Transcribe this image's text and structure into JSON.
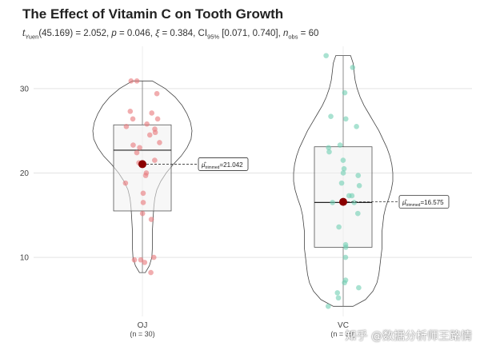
{
  "title": "The Effect of Vitamin C on Tooth Growth",
  "subtitle": {
    "test": "t",
    "test_sub": "Yuen",
    "df_stat": "(45.169) = 2.052, ",
    "p_label": "p",
    "p_value": " = 0.046, ",
    "effect_label": "ξ",
    "effect_value": " = 0.384, CI",
    "ci_sub": "95%",
    "ci_value": " [0.071, 0.740], ",
    "n_label": "n",
    "n_sub": "obs",
    "n_value": " = 60"
  },
  "watermark": "知乎 @数据分析师王路情",
  "chart_data": {
    "type": "violin-box-scatter",
    "title": "The Effect of Vitamin C on Tooth Growth",
    "xlabel": "",
    "ylabel": "",
    "ylim": [
      3,
      35
    ],
    "yticks": [
      10,
      20,
      30
    ],
    "grid": true,
    "categories": [
      {
        "label": "OJ",
        "n_label": "(n = 30)",
        "color": "#e8777a",
        "box": {
          "q1": 15.5,
          "median": 22.7,
          "q3": 25.7,
          "whisker_low": 8.2,
          "whisker_high": 30.9
        },
        "trimmed_mean": 21.042,
        "mean_label": "21.042",
        "violin": [
          [
            8.2,
            0.06
          ],
          [
            9,
            0.14
          ],
          [
            10,
            0.19
          ],
          [
            11,
            0.2
          ],
          [
            12,
            0.2
          ],
          [
            13,
            0.2
          ],
          [
            14,
            0.21
          ],
          [
            15,
            0.22
          ],
          [
            16,
            0.23
          ],
          [
            17,
            0.25
          ],
          [
            18,
            0.29
          ],
          [
            19,
            0.37
          ],
          [
            20,
            0.48
          ],
          [
            21,
            0.62
          ],
          [
            22,
            0.78
          ],
          [
            23,
            0.9
          ],
          [
            24,
            0.98
          ],
          [
            25,
            1.0
          ],
          [
            26,
            0.97
          ],
          [
            27,
            0.9
          ],
          [
            28,
            0.8
          ],
          [
            29,
            0.66
          ],
          [
            30,
            0.46
          ],
          [
            30.9,
            0.2
          ]
        ],
        "points": [
          8.2,
          9.4,
          9.7,
          9.7,
          10,
          14.5,
          15.2,
          16.5,
          17.6,
          18.8,
          19.7,
          20,
          21.2,
          21.5,
          22.4,
          23,
          23.3,
          23.6,
          24.5,
          24.8,
          25.2,
          25.5,
          25.8,
          26.4,
          26.4,
          27.1,
          27.3,
          29.4,
          30.9,
          30.9
        ]
      },
      {
        "label": "VC",
        "n_label": "(n = 30)",
        "color": "#6fcfb3",
        "box": {
          "q1": 11.2,
          "median": 16.5,
          "q3": 23.1,
          "whisker_low": 4.2,
          "whisker_high": 33.9
        },
        "trimmed_mean": 16.575,
        "mean_label": "16.575",
        "violin": [
          [
            4.2,
            0.2
          ],
          [
            5,
            0.45
          ],
          [
            6,
            0.6
          ],
          [
            7,
            0.68
          ],
          [
            8,
            0.72
          ],
          [
            9,
            0.74
          ],
          [
            10,
            0.76
          ],
          [
            11,
            0.78
          ],
          [
            12,
            0.78
          ],
          [
            13,
            0.78
          ],
          [
            14,
            0.8
          ],
          [
            15,
            0.82
          ],
          [
            16,
            0.86
          ],
          [
            17,
            0.92
          ],
          [
            18,
            0.97
          ],
          [
            19,
            1.0
          ],
          [
            20,
            1.0
          ],
          [
            21,
            0.98
          ],
          [
            22,
            0.94
          ],
          [
            23,
            0.88
          ],
          [
            24,
            0.8
          ],
          [
            25,
            0.72
          ],
          [
            26,
            0.62
          ],
          [
            27,
            0.52
          ],
          [
            28,
            0.42
          ],
          [
            29,
            0.34
          ],
          [
            30,
            0.28
          ],
          [
            31,
            0.24
          ],
          [
            32,
            0.22
          ],
          [
            33,
            0.2
          ],
          [
            33.9,
            0.15
          ]
        ],
        "points": [
          4.2,
          5.2,
          5.8,
          6.4,
          7,
          7.3,
          10,
          11.2,
          11.5,
          13.6,
          15.2,
          16.5,
          16.5,
          17.3,
          17.3,
          18.5,
          18.8,
          19.7,
          20,
          20.5,
          21.5,
          22.5,
          23,
          23.3,
          25.5,
          26.4,
          26.7,
          29.5,
          32.5,
          33.9
        ]
      }
    ]
  }
}
